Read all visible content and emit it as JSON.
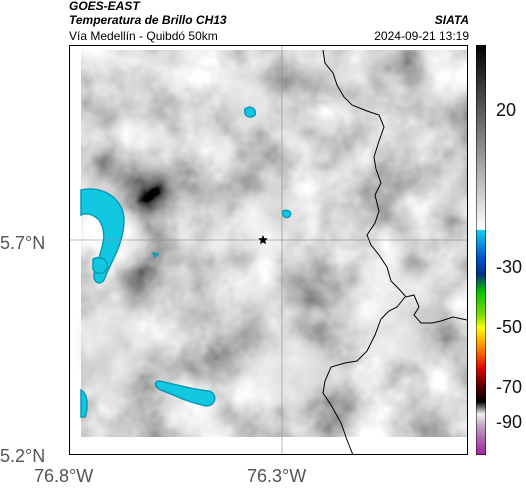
{
  "header": {
    "satellite": "GOES-EAST",
    "product": "Temperatura de Brillo CH13",
    "organization": "SIATA",
    "location": "Vía Medellín - Quibdó 50km",
    "datetime": "2024-09-21 13:19"
  },
  "map": {
    "latitude_labels": [
      "5.7°N",
      "5.2°N"
    ],
    "longitude_labels": [
      "76.8°W",
      "76.3°W"
    ],
    "marker_icon": "star-icon",
    "colors": {
      "cloud_gray": "#8c8c8c",
      "cold_cyan": "#12c8e0",
      "border": "#000000"
    }
  },
  "colorbar": {
    "tick_labels": [
      "20",
      "-30",
      "-50",
      "-70",
      "-90"
    ]
  }
}
